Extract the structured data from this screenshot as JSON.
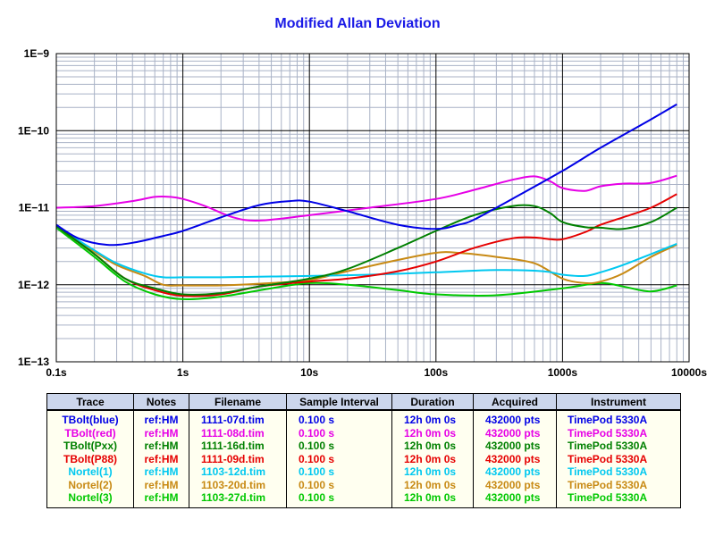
{
  "chart_data": {
    "type": "line",
    "title": "Modified Allan Deviation",
    "xscale": "log",
    "yscale": "log",
    "xlim": [
      0.1,
      10000
    ],
    "ylim": [
      1e-13,
      1e-09
    ],
    "x_tick_labels": [
      "0.1s",
      "1s",
      "10s",
      "100s",
      "1000s",
      "10000s"
    ],
    "y_tick_labels": [
      "1E−13",
      "1E−12",
      "1E−11",
      "1E−10",
      "1E−9"
    ],
    "grid": true,
    "series": [
      {
        "name": "TBolt(blue)",
        "color": "#0000e6",
        "x": [
          0.1,
          0.15,
          0.25,
          0.4,
          0.7,
          1,
          2,
          4,
          7,
          10,
          20,
          50,
          100,
          150,
          200,
          400,
          1000,
          2000,
          5000,
          8000
        ],
        "y": [
          6e-12,
          4e-12,
          3.3e-12,
          3.5e-12,
          4.3e-12,
          5e-12,
          7.5e-12,
          1.08e-11,
          1.22e-11,
          1.2e-11,
          9e-12,
          6e-12,
          5.3e-12,
          6e-12,
          7e-12,
          1.3e-11,
          3e-11,
          6e-11,
          1.4e-10,
          2.2e-10
        ]
      },
      {
        "name": "TBolt(red)",
        "color": "#e600e6",
        "x": [
          0.1,
          0.2,
          0.4,
          0.6,
          0.8,
          1,
          1.5,
          2.5,
          4,
          10,
          30,
          100,
          200,
          400,
          600,
          800,
          1000,
          1500,
          2000,
          3000,
          5000,
          8000
        ],
        "y": [
          1e-11,
          1.05e-11,
          1.22e-11,
          1.38e-11,
          1.38e-11,
          1.3e-11,
          1.05e-11,
          7.5e-12,
          6.8e-12,
          8e-12,
          1e-11,
          1.3e-11,
          1.7e-11,
          2.3e-11,
          2.55e-11,
          2.2e-11,
          1.8e-11,
          1.65e-11,
          1.9e-11,
          2.05e-11,
          2.1e-11,
          2.6e-11
        ]
      },
      {
        "name": "TBolt(Pxx)",
        "color": "#008000",
        "x": [
          0.1,
          0.2,
          0.35,
          0.6,
          1,
          2,
          4,
          10,
          20,
          50,
          100,
          200,
          400,
          600,
          800,
          1000,
          1500,
          2000,
          3000,
          5000,
          8000
        ],
        "y": [
          5.8e-12,
          2.5e-12,
          1.2e-12,
          9e-13,
          7.5e-13,
          7.8e-13,
          9.5e-13,
          1.2e-12,
          1.6e-12,
          3e-12,
          5e-12,
          8e-12,
          1.05e-11,
          1.05e-11,
          8.5e-12,
          6.5e-12,
          5.6e-12,
          5.5e-12,
          5.3e-12,
          6.5e-12,
          1e-11
        ]
      },
      {
        "name": "TBolt(P88)",
        "color": "#e60000",
        "x": [
          0.1,
          0.2,
          0.35,
          0.6,
          1,
          2,
          4,
          10,
          20,
          50,
          100,
          200,
          400,
          600,
          800,
          1000,
          1500,
          2000,
          3000,
          5000,
          8000
        ],
        "y": [
          5.8e-12,
          2.5e-12,
          1.2e-12,
          8.5e-13,
          7.2e-13,
          7.5e-13,
          9.5e-13,
          1.1e-12,
          1.2e-12,
          1.5e-12,
          2e-12,
          3e-12,
          4e-12,
          4.1e-12,
          3.9e-12,
          3.9e-12,
          4.8e-12,
          6e-12,
          7.5e-12,
          1e-11,
          1.5e-11
        ]
      },
      {
        "name": "Nortel(1)",
        "color": "#00c8f0",
        "x": [
          0.1,
          0.2,
          0.3,
          0.5,
          0.7,
          1,
          2,
          5,
          10,
          30,
          100,
          300,
          700,
          1000,
          1500,
          2000,
          3000,
          5000,
          8000
        ],
        "y": [
          5.7e-12,
          2.8e-12,
          1.9e-12,
          1.4e-12,
          1.25e-12,
          1.25e-12,
          1.25e-12,
          1.28e-12,
          1.3e-12,
          1.35e-12,
          1.45e-12,
          1.55e-12,
          1.5e-12,
          1.35e-12,
          1.3e-12,
          1.45e-12,
          1.8e-12,
          2.5e-12,
          3.4e-12
        ]
      },
      {
        "name": "Nortel(2)",
        "color": "#c88a14",
        "x": [
          0.1,
          0.2,
          0.3,
          0.5,
          0.7,
          1,
          2,
          5,
          10,
          20,
          50,
          100,
          150,
          300,
          600,
          1000,
          1500,
          2000,
          3000,
          5000,
          8000
        ],
        "y": [
          5.7e-12,
          2.7e-12,
          1.8e-12,
          1.3e-12,
          1e-12,
          9.8e-13,
          9.8e-13,
          1.05e-12,
          1.15e-12,
          1.5e-12,
          2.1e-12,
          2.6e-12,
          2.6e-12,
          2.3e-12,
          1.9e-12,
          1.2e-12,
          1.05e-12,
          1.1e-12,
          1.4e-12,
          2.3e-12,
          3.3e-12
        ]
      },
      {
        "name": "Nortel(3)",
        "color": "#00c800",
        "x": [
          0.1,
          0.2,
          0.35,
          0.6,
          1,
          2,
          5,
          10,
          20,
          50,
          100,
          300,
          1000,
          2000,
          3000,
          5000,
          8000
        ],
        "y": [
          5.5e-12,
          2.3e-12,
          1.1e-12,
          7.5e-13,
          6.5e-13,
          7e-13,
          9e-13,
          1.05e-12,
          1e-12,
          8.5e-13,
          7.5e-13,
          7.3e-13,
          9e-13,
          1.05e-12,
          9.5e-13,
          8.2e-13,
          9.8e-13
        ]
      }
    ]
  },
  "table": {
    "headers": [
      "Trace",
      "Notes",
      "Filename",
      "Sample Interval",
      "Duration",
      "Acquired",
      "Instrument"
    ],
    "rows": [
      {
        "color": "#0000e6",
        "cells": [
          "TBolt(blue)",
          "ref:HM",
          "1111-07d.tim",
          "0.100 s",
          "12h 0m 0s",
          "432000 pts",
          "TimePod 5330A"
        ]
      },
      {
        "color": "#e600e6",
        "cells": [
          "TBolt(red)",
          "ref:HM",
          "1111-08d.tim",
          "0.100 s",
          "12h 0m 0s",
          "432000 pts",
          "TimePod 5330A"
        ]
      },
      {
        "color": "#008000",
        "cells": [
          "TBolt(Pxx)",
          "ref:HM",
          "1111-16d.tim",
          "0.100 s",
          "12h 0m 0s",
          "432000 pts",
          "TimePod 5330A"
        ]
      },
      {
        "color": "#e60000",
        "cells": [
          "TBolt(P88)",
          "ref:HM",
          "1111-09d.tim",
          "0.100 s",
          "12h 0m 0s",
          "432000 pts",
          "TimePod 5330A"
        ]
      },
      {
        "color": "#00c8f0",
        "cells": [
          "Nortel(1)",
          "ref:HM",
          "1103-12d.tim",
          "0.100 s",
          "12h 0m 0s",
          "432000 pts",
          "TimePod 5330A"
        ]
      },
      {
        "color": "#c88a14",
        "cells": [
          "Nortel(2)",
          "ref:HM",
          "1103-20d.tim",
          "0.100 s",
          "12h 0m 0s",
          "432000 pts",
          "TimePod 5330A"
        ]
      },
      {
        "color": "#00c800",
        "cells": [
          "Nortel(3)",
          "ref:HM",
          "1103-27d.tim",
          "0.100 s",
          "12h 0m 0s",
          "432000 pts",
          "TimePod 5330A"
        ]
      }
    ]
  }
}
